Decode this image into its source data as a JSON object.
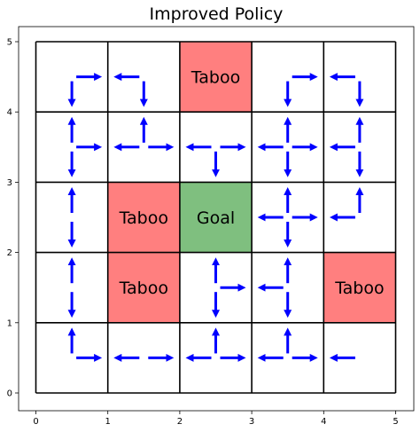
{
  "chart_data": {
    "type": "heatmap",
    "title": "Improved Policy",
    "xlabel": "",
    "ylabel": "",
    "xlim": [
      0,
      5
    ],
    "ylim": [
      0,
      5
    ],
    "x_ticks": [
      "0",
      "1",
      "2",
      "3",
      "4",
      "5"
    ],
    "y_ticks": [
      "0",
      "1",
      "2",
      "3",
      "4",
      "5"
    ],
    "grid": true,
    "colors": {
      "taboo": "#ff7f7f",
      "goal": "#7fbf7f",
      "arrow": "#0000ff",
      "grid": "#000000"
    },
    "special_cells": [
      {
        "col": 2,
        "row": 4,
        "label": "Taboo",
        "kind": "taboo"
      },
      {
        "col": 1,
        "row": 2,
        "label": "Taboo",
        "kind": "taboo"
      },
      {
        "col": 2,
        "row": 2,
        "label": "Goal",
        "kind": "goal"
      },
      {
        "col": 1,
        "row": 1,
        "label": "Taboo",
        "kind": "taboo"
      },
      {
        "col": 4,
        "row": 1,
        "label": "Taboo",
        "kind": "taboo"
      }
    ],
    "policy": [
      {
        "col": 0,
        "row": 4,
        "actions": [
          "right",
          "down"
        ]
      },
      {
        "col": 1,
        "row": 4,
        "actions": [
          "left",
          "down"
        ]
      },
      {
        "col": 3,
        "row": 4,
        "actions": [
          "right",
          "down"
        ]
      },
      {
        "col": 4,
        "row": 4,
        "actions": [
          "left",
          "down"
        ]
      },
      {
        "col": 0,
        "row": 3,
        "actions": [
          "up",
          "right",
          "down"
        ]
      },
      {
        "col": 1,
        "row": 3,
        "actions": [
          "up",
          "left",
          "right"
        ]
      },
      {
        "col": 2,
        "row": 3,
        "actions": [
          "left",
          "right",
          "down"
        ]
      },
      {
        "col": 3,
        "row": 3,
        "actions": [
          "up",
          "left",
          "right",
          "down"
        ]
      },
      {
        "col": 4,
        "row": 3,
        "actions": [
          "up",
          "left",
          "down"
        ]
      },
      {
        "col": 0,
        "row": 2,
        "actions": [
          "up",
          "down"
        ]
      },
      {
        "col": 3,
        "row": 2,
        "actions": [
          "up",
          "left",
          "right",
          "down"
        ]
      },
      {
        "col": 4,
        "row": 2,
        "actions": [
          "up",
          "left"
        ]
      },
      {
        "col": 0,
        "row": 1,
        "actions": [
          "up",
          "down"
        ]
      },
      {
        "col": 2,
        "row": 1,
        "actions": [
          "up",
          "right",
          "down"
        ]
      },
      {
        "col": 3,
        "row": 1,
        "actions": [
          "up",
          "left",
          "down"
        ]
      },
      {
        "col": 0,
        "row": 0,
        "actions": [
          "up",
          "right"
        ]
      },
      {
        "col": 1,
        "row": 0,
        "actions": [
          "left",
          "right"
        ]
      },
      {
        "col": 2,
        "row": 0,
        "actions": [
          "up",
          "left",
          "right"
        ]
      },
      {
        "col": 3,
        "row": 0,
        "actions": [
          "up",
          "left",
          "right"
        ]
      },
      {
        "col": 4,
        "row": 0,
        "actions": [
          "left"
        ]
      }
    ]
  }
}
